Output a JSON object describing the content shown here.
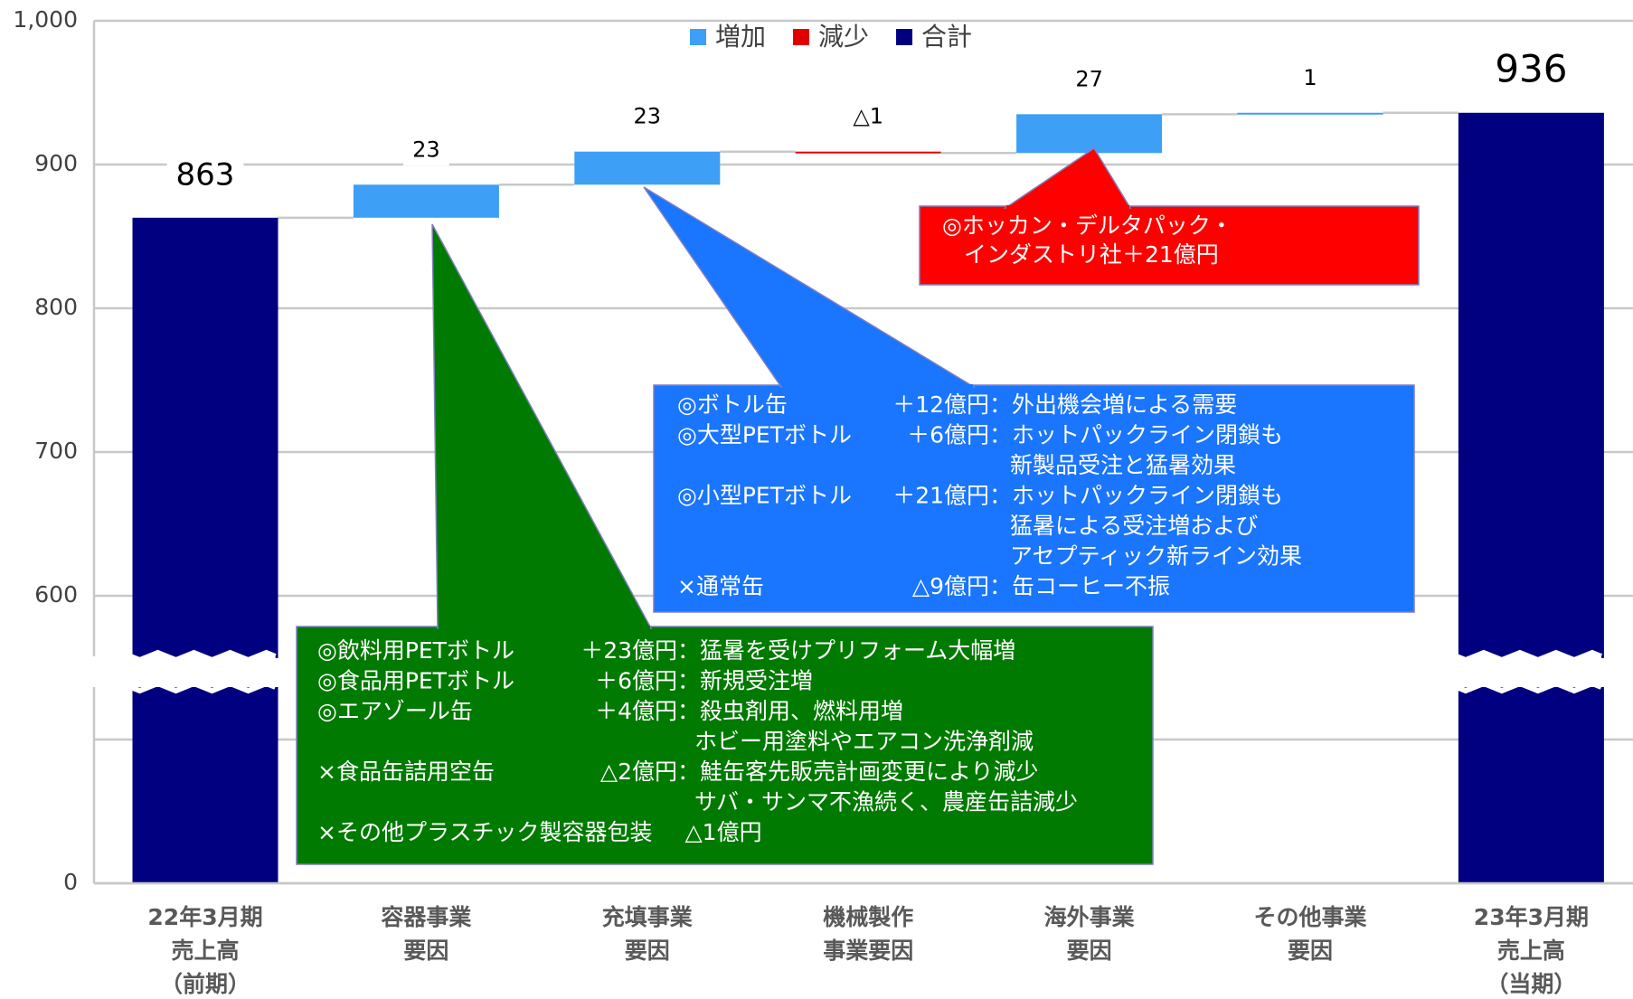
{
  "chart_data": {
    "type": "waterfall",
    "categories": [
      [
        "22年3月期",
        "売上高",
        "（前期）"
      ],
      [
        "容器事業",
        "要因"
      ],
      [
        "充填事業",
        "要因"
      ],
      [
        "機械製作",
        "事業要因"
      ],
      [
        "海外事業",
        "要因"
      ],
      [
        "その他事業",
        "要因"
      ],
      [
        "23年3月期",
        "売上高",
        "（当期）"
      ]
    ],
    "series": [
      {
        "name": "増加",
        "color": "#3d9ff5",
        "values": [
          null,
          23,
          23,
          null,
          27,
          1,
          null
        ]
      },
      {
        "name": "減少",
        "color": "#e00000",
        "values": [
          null,
          null,
          null,
          -1,
          null,
          null,
          null
        ],
        "value_labels": [
          null,
          null,
          null,
          "△1",
          null,
          null,
          null
        ]
      },
      {
        "name": "合計",
        "color": "#000080",
        "values": [
          863,
          null,
          null,
          null,
          null,
          null,
          936
        ]
      }
    ],
    "ylim": [
      0,
      1000
    ],
    "yticks": [
      0,
      600,
      700,
      800,
      900,
      {
        "value": 1000,
        "label": "1,000"
      }
    ],
    "grid": true,
    "legend": "top",
    "annotations": [
      {
        "color": "#007a00",
        "rows": [
          [
            "◎飲料用PETボトル",
            "＋23億円",
            "：猛暑を受けプリフォーム大幅増"
          ],
          [
            "◎食品用PETボトル",
            "＋6億円",
            "：新規受注増"
          ],
          [
            "◎エアゾール缶",
            "＋4億円",
            "：殺虫剤用、燃料用増"
          ],
          [
            "ホビー用塗料やエアコン洗浄剤減"
          ],
          [
            "×食品缶詰用空缶",
            "△2億円",
            "：鮭缶客先販売計画変更により減少"
          ],
          [
            "サバ・サンマ不漁続く、農産缶詰減少"
          ],
          [
            "×その他プラスチック製容器包装",
            "△1億円"
          ]
        ]
      },
      {
        "color": "#1a75ff",
        "rows": [
          [
            "◎ボトル缶",
            "＋12億円",
            "：外出機会増による需要"
          ],
          [
            "◎大型PETボトル",
            "＋6億円",
            "：ホットパックライン閉鎖も"
          ],
          [
            "新製品受注と猛暑効果"
          ],
          [
            "◎小型PETボトル",
            "＋21億円",
            "：ホットパックライン閉鎖も"
          ],
          [
            "猛暑による受注増および"
          ],
          [
            "アセプティック新ライン効果"
          ],
          [
            "×通常缶",
            "△9億円",
            "：缶コーヒー不振"
          ]
        ]
      },
      {
        "color": "#ff0000",
        "rows": [
          [
            "◎ホッカン・デルタパック・"
          ],
          [
            "インダストリ社＋21億円"
          ]
        ]
      }
    ]
  }
}
